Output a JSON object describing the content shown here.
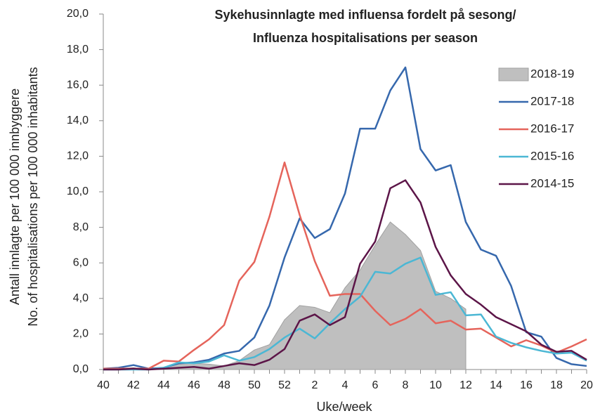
{
  "chart_data": {
    "type": "line",
    "title": [
      "Sykehusinnlagte med influensa fordelt på sesong/",
      "Influenza hospitalisations per season"
    ],
    "xlabel": "Uke/week",
    "ylabel": [
      "Antall innlagte per 100 000 innbyggere",
      "No. of hospitalisations per 100 000 inhabitants"
    ],
    "categories": [
      40,
      null,
      42,
      null,
      44,
      null,
      46,
      null,
      48,
      null,
      50,
      null,
      52,
      null,
      2,
      null,
      4,
      null,
      6,
      null,
      8,
      null,
      10,
      null,
      12,
      null,
      14,
      null,
      16,
      null,
      18,
      null,
      20
    ],
    "ylim": [
      0,
      20
    ],
    "yticks": [
      {
        "value": 0,
        "label": "0,0"
      },
      {
        "value": 2,
        "label": "2,0"
      },
      {
        "value": 4,
        "label": "4,0"
      },
      {
        "value": 6,
        "label": "6,0"
      },
      {
        "value": 8,
        "label": "8,0"
      },
      {
        "value": 10,
        "label": "10,0"
      },
      {
        "value": 12,
        "label": "12,0"
      },
      {
        "value": 14,
        "label": "14,0"
      },
      {
        "value": 16,
        "label": "16,0"
      },
      {
        "value": 18,
        "label": "18,0"
      },
      {
        "value": 20,
        "label": "20,0"
      }
    ],
    "legend": "upper right",
    "series": [
      {
        "name": "2018-19",
        "style": "area",
        "color": "#bfbfbf",
        "values": [
          0,
          0.05,
          0.1,
          0,
          0.1,
          0.3,
          0.35,
          0.3,
          0.2,
          0.5,
          1.1,
          1.4,
          2.8,
          3.6,
          3.5,
          3.2,
          4.6,
          5.6,
          7.0,
          8.3,
          7.6,
          6.7,
          4.4,
          4.0,
          3.4,
          null,
          null,
          null,
          null,
          null,
          null,
          null,
          null
        ]
      },
      {
        "name": "2017-18",
        "style": "line",
        "color": "#3668ad",
        "values": [
          0.05,
          0.1,
          0.25,
          0.05,
          0.1,
          0.35,
          0.4,
          0.55,
          0.9,
          1.05,
          1.8,
          3.6,
          6.3,
          8.5,
          7.4,
          7.9,
          9.9,
          13.55,
          13.55,
          15.7,
          17.0,
          12.4,
          11.2,
          11.5,
          8.3,
          6.75,
          6.4,
          4.7,
          2.1,
          1.85,
          0.65,
          0.3,
          0.2
        ]
      },
      {
        "name": "2016-17",
        "style": "line",
        "color": "#e5645b",
        "values": [
          0.05,
          0.05,
          0.05,
          0.05,
          0.5,
          0.45,
          1.1,
          1.7,
          2.5,
          5.0,
          6.05,
          8.6,
          11.65,
          8.7,
          6.1,
          4.15,
          4.25,
          4.25,
          3.3,
          2.5,
          2.85,
          3.4,
          2.6,
          2.75,
          2.25,
          2.3,
          1.8,
          1.3,
          1.65,
          1.35,
          0.95,
          1.3,
          1.7
        ]
      },
      {
        "name": "2015-16",
        "style": "line",
        "color": "#4bb7d4",
        "values": [
          0,
          0,
          0,
          0,
          0.1,
          0.4,
          0.35,
          0.45,
          0.8,
          0.5,
          0.7,
          1.15,
          1.8,
          2.3,
          1.75,
          2.6,
          3.4,
          4.1,
          5.5,
          5.4,
          5.95,
          6.3,
          4.2,
          4.35,
          3.05,
          3.1,
          1.85,
          1.5,
          1.25,
          1.05,
          0.9,
          0.95,
          0.5
        ]
      },
      {
        "name": "2014-15",
        "style": "line",
        "color": "#5c1548",
        "values": [
          0,
          0,
          0.05,
          0,
          0.05,
          0.1,
          0.15,
          0.05,
          0.2,
          0.35,
          0.25,
          0.55,
          1.15,
          2.75,
          3.1,
          2.5,
          2.95,
          5.95,
          7.2,
          10.2,
          10.65,
          9.4,
          6.9,
          5.3,
          4.25,
          3.65,
          2.95,
          2.55,
          2.15,
          1.4,
          1.0,
          1.05,
          0.55
        ]
      }
    ]
  }
}
